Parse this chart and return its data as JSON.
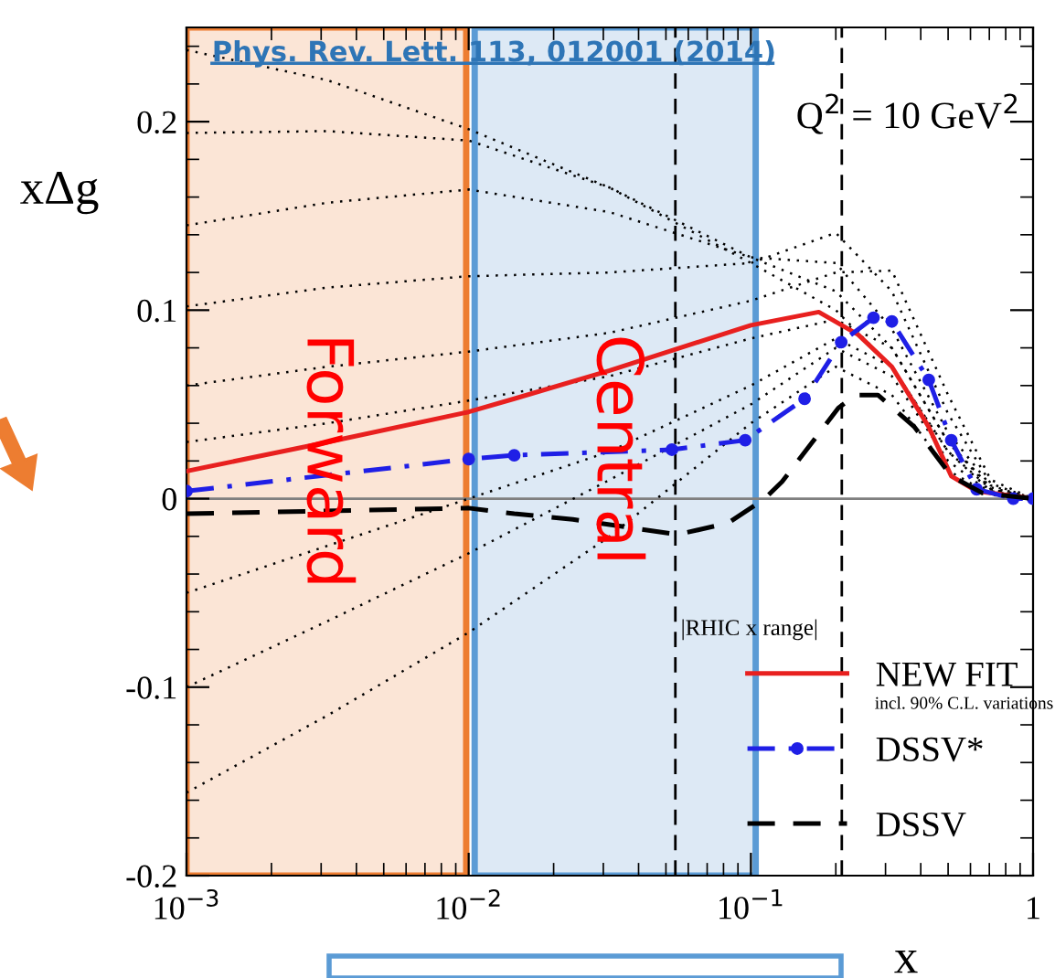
{
  "chart_data": {
    "type": "line",
    "xlabel": "x",
    "ylabel": "xΔg",
    "annotations": [
      "Phys. Rev. Lett. 113, 012001 (2014)",
      "Q$^{2}$ = 10 GeV$^{2}$",
      "|RHIC x range|",
      "incl. 90% C.L. variations"
    ],
    "log": "x",
    "xlim": [
      0.001,
      1
    ],
    "xticks": [
      {
        "value": 0.001,
        "label": "10$^{−3}$"
      },
      {
        "value": 0.01,
        "label": "10$^{−2}$"
      },
      {
        "value": 0.1,
        "label": "10$^{−1}$"
      },
      1
    ],
    "ylim": [
      -0.2,
      0.25
    ],
    "yticks": [
      {
        "value": -0.2,
        "label": "-0.2"
      },
      {
        "value": -0.1,
        "label": "-0.1"
      },
      0,
      {
        "value": 0.1,
        "label": "0.1"
      },
      {
        "value": 0.2,
        "label": "0.2"
      }
    ],
    "grid": false,
    "legend": "bottom right",
    "bands": [
      {
        "axis": "x",
        "from": 0.001,
        "to": 0.0098,
        "label": "Forward",
        "color": "#fbe5d6"
      },
      {
        "axis": "x",
        "from": 0.0105,
        "to": 0.104,
        "label": "Central",
        "color": "#dde9f5"
      }
    ],
    "ref_lines": [
      {
        "axis": "y",
        "value": 0,
        "color": "#808080",
        "line_style": "solid"
      },
      {
        "axis": "x",
        "value": 0.054,
        "color": "#000000",
        "line_style": "dashed"
      },
      {
        "axis": "x",
        "value": 0.21,
        "color": "#000000",
        "line_style": "dashed"
      }
    ],
    "series": [
      {
        "color": "#000000",
        "line_style": "dotted",
        "marker": "none",
        "x": [
          0.001,
          0.00316,
          0.01,
          0.0316,
          0.1,
          0.2,
          0.316,
          0.5,
          0.708,
          1
        ],
        "values": [
          0.238,
          0.222,
          0.196,
          0.165,
          0.125,
          0.1,
          0.07,
          0.025,
          0.005,
          0
        ]
      },
      {
        "color": "#000000",
        "line_style": "dotted",
        "marker": "none",
        "x": [
          0.001,
          0.00316,
          0.01,
          0.0316,
          0.1,
          0.2,
          0.316,
          0.5,
          0.708,
          1
        ],
        "values": [
          0.194,
          0.195,
          0.19,
          0.165,
          0.128,
          0.11,
          0.08,
          0.03,
          0.006,
          0
        ]
      },
      {
        "color": "#000000",
        "line_style": "dotted",
        "marker": "none",
        "x": [
          0.001,
          0.00316,
          0.01,
          0.0316,
          0.1,
          0.2,
          0.316,
          0.5,
          0.708,
          1
        ],
        "values": [
          0.145,
          0.157,
          0.164,
          0.152,
          0.128,
          0.125,
          0.09,
          0.035,
          0.007,
          0
        ]
      },
      {
        "color": "#000000",
        "line_style": "dotted",
        "marker": "none",
        "x": [
          0.001,
          0.00316,
          0.01,
          0.0316,
          0.1,
          0.2,
          0.316,
          0.5,
          0.708,
          1
        ],
        "values": [
          0.102,
          0.112,
          0.118,
          0.12,
          0.125,
          0.141,
          0.11,
          0.045,
          0.008,
          0
        ]
      },
      {
        "color": "#000000",
        "line_style": "dotted",
        "marker": "none",
        "x": [
          0.001,
          0.00316,
          0.01,
          0.0316,
          0.1,
          0.2,
          0.316,
          0.5,
          0.708,
          1
        ],
        "values": [
          0.06,
          0.07,
          0.078,
          0.088,
          0.105,
          0.12,
          0.121,
          0.055,
          0.01,
          0
        ]
      },
      {
        "color": "#000000",
        "line_style": "dotted",
        "marker": "none",
        "x": [
          0.001,
          0.00316,
          0.01,
          0.0316,
          0.1,
          0.2,
          0.316,
          0.5,
          0.708,
          1
        ],
        "values": [
          0.03,
          0.04,
          0.052,
          0.065,
          0.085,
          0.095,
          0.08,
          0.03,
          0.005,
          0
        ]
      },
      {
        "color": "#000000",
        "line_style": "dotted",
        "marker": "none",
        "x": [
          0.001,
          0.00316,
          0.01,
          0.0316,
          0.1,
          0.2,
          0.316,
          0.5,
          0.708,
          1
        ],
        "values": [
          -0.05,
          -0.025,
          0.0,
          0.025,
          0.06,
          0.085,
          0.07,
          0.025,
          0.004,
          0
        ]
      },
      {
        "color": "#000000",
        "line_style": "dotted",
        "marker": "none",
        "x": [
          0.001,
          0.00316,
          0.01,
          0.0316,
          0.1,
          0.2,
          0.316,
          0.5,
          0.708,
          1
        ],
        "values": [
          -0.1,
          -0.065,
          -0.029,
          0.01,
          0.05,
          0.08,
          0.065,
          0.02,
          0.003,
          0
        ]
      },
      {
        "color": "#000000",
        "line_style": "dotted",
        "marker": "none",
        "x": [
          0.001,
          0.00316,
          0.01,
          0.0316,
          0.1,
          0.2,
          0.316,
          0.5,
          0.708,
          1
        ],
        "values": [
          -0.156,
          -0.115,
          -0.071,
          -0.02,
          0.04,
          0.07,
          0.055,
          0.015,
          0.002,
          0
        ]
      },
      {
        "name": "NEW FIT",
        "color": "#e8201f",
        "line_style": "solid",
        "marker": "none",
        "x": [
          0.001,
          0.00316,
          0.01,
          0.0145,
          0.0316,
          0.1,
          0.174,
          0.24,
          0.316,
          0.427,
          0.513,
          0.631,
          1
        ],
        "values": [
          0.0146,
          0.03,
          0.046,
          0.053,
          0.068,
          0.092,
          0.099,
          0.087,
          0.07,
          0.038,
          0.012,
          0.004,
          0
        ]
      },
      {
        "name": "DSSV*",
        "color": "#1f1fe6",
        "line_style": "dashdot",
        "marker": "circle",
        "x": [
          0.001,
          0.01,
          0.0145,
          0.0525,
          0.0955,
          0.155,
          0.209,
          0.272,
          0.316,
          0.427,
          0.513,
          0.631,
          0.851,
          1
        ],
        "values": [
          0.004,
          0.021,
          0.023,
          0.026,
          0.031,
          0.053,
          0.083,
          0.096,
          0.094,
          0.063,
          0.031,
          0.005,
          0,
          0
        ]
      },
      {
        "name": "DSSV",
        "color": "#000000",
        "line_style": "dashed",
        "marker": "none",
        "x": [
          0.001,
          0.01,
          0.0145,
          0.0234,
          0.055,
          0.083,
          0.112,
          0.129,
          0.204,
          0.234,
          0.282,
          0.38,
          0.513,
          0.661,
          1
        ],
        "values": [
          -0.008,
          -0.005,
          -0.008,
          -0.011,
          -0.019,
          -0.013,
          0,
          0.009,
          0.048,
          0.055,
          0.055,
          0.038,
          0.012,
          0.003,
          0
        ]
      }
    ]
  }
}
